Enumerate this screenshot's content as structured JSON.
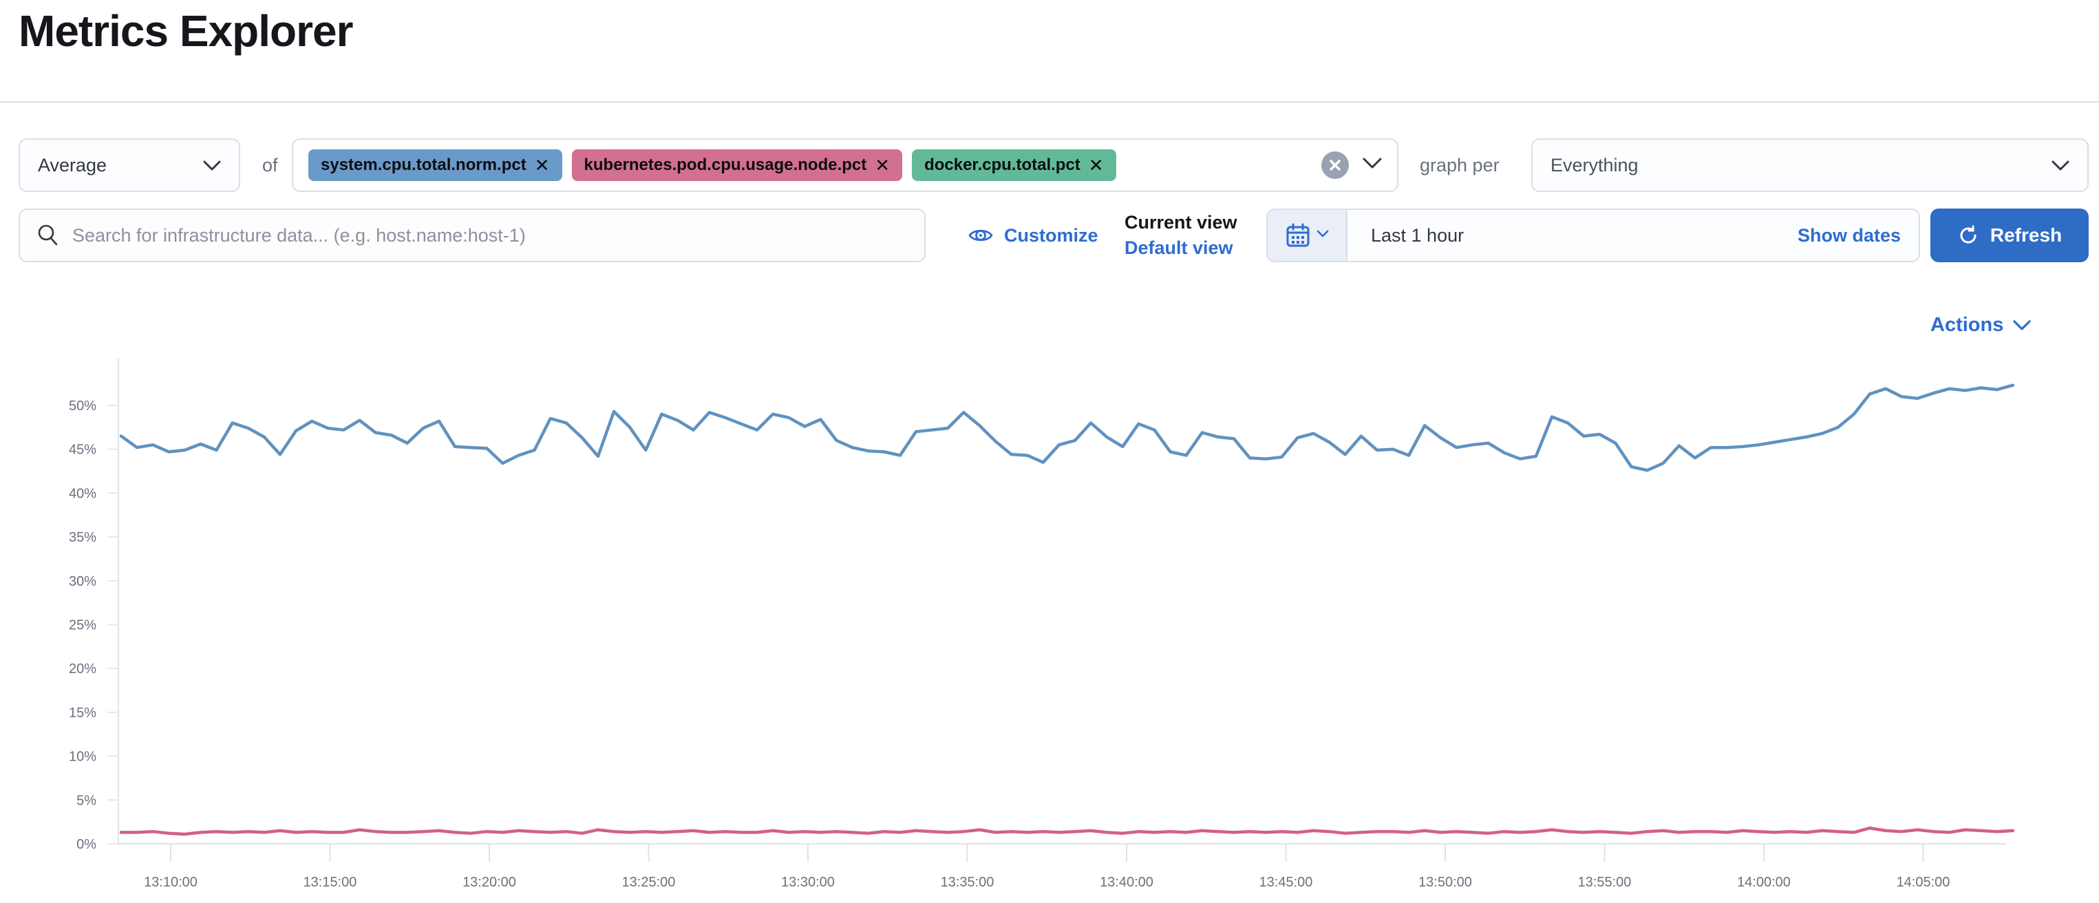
{
  "page": {
    "title": "Metrics Explorer"
  },
  "toolbar": {
    "aggregation": {
      "value": "Average"
    },
    "of_label": "of",
    "metrics": {
      "items": [
        {
          "label": "system.cpu.total.norm.pct",
          "color": "#6A9AC9"
        },
        {
          "label": "kubernetes.pod.cpu.usage.node.pct",
          "color": "#D2708F"
        },
        {
          "label": "docker.cpu.total.pct",
          "color": "#62B998"
        }
      ],
      "remove_icon": "✕",
      "clear_icon": "✕"
    },
    "graph_per_label": "graph per",
    "group_by": {
      "value": "Everything"
    }
  },
  "filter_bar": {
    "search": {
      "placeholder": "Search for infrastructure data... (e.g. host.name:host-1)"
    },
    "customize_label": "Customize",
    "view_switcher": {
      "current_label": "Current view",
      "default_label": "Default view"
    },
    "time_picker": {
      "value": "Last 1 hour",
      "show_dates_label": "Show dates"
    },
    "refresh_label": "Refresh"
  },
  "actions_label": "Actions",
  "colors": {
    "link_blue": "#2e6cd2",
    "button_blue": "#2f6cc6",
    "series_blue": "#6092C0",
    "series_pink": "#D36086",
    "axis_line": "#dfe3ea",
    "tick_text": "#69707d"
  },
  "chart_data": {
    "type": "line",
    "title": "",
    "xlabel": "",
    "ylabel": "",
    "ylim": [
      0,
      53.5
    ],
    "grid": false,
    "legend": "none",
    "y_ticks": [
      "0%",
      "5%",
      "10%",
      "15%",
      "20%",
      "25%",
      "30%",
      "35%",
      "40%",
      "45%",
      "50%"
    ],
    "x_ticks": [
      "13:10:00",
      "13:15:00",
      "13:20:00",
      "13:25:00",
      "13:30:00",
      "13:35:00",
      "13:40:00",
      "13:45:00",
      "13:50:00",
      "13:55:00",
      "14:00:00",
      "14:05:00"
    ],
    "x_start": "13:08:30",
    "x_step_seconds": 30,
    "series": [
      {
        "name": "system.cpu.total.norm.pct",
        "color": "#6092C0",
        "unit": "%",
        "values": [
          46.5,
          45.2,
          45.5,
          44.7,
          44.9,
          45.6,
          44.9,
          48.0,
          47.4,
          46.4,
          44.4,
          47.1,
          48.2,
          47.4,
          47.2,
          48.3,
          46.9,
          46.6,
          45.7,
          47.4,
          48.2,
          45.3,
          45.2,
          45.1,
          43.4,
          44.3,
          44.9,
          48.5,
          48.0,
          46.3,
          44.2,
          49.3,
          47.5,
          44.9,
          49.0,
          48.3,
          47.2,
          49.2,
          48.6,
          47.9,
          47.2,
          49.0,
          48.6,
          47.6,
          48.4,
          46.0,
          45.2,
          44.8,
          44.7,
          44.3,
          47.0,
          47.2,
          47.4,
          49.2,
          47.7,
          45.9,
          44.4,
          44.3,
          43.5,
          45.5,
          46.0,
          48.0,
          46.4,
          45.3,
          47.9,
          47.2,
          44.7,
          44.3,
          46.9,
          46.4,
          46.2,
          44.0,
          43.9,
          44.1,
          46.3,
          46.8,
          45.8,
          44.4,
          46.5,
          44.9,
          45.0,
          44.3,
          47.7,
          46.3,
          45.2,
          45.5,
          45.7,
          44.6,
          43.9,
          44.2,
          48.7,
          48.0,
          46.5,
          46.7,
          45.7,
          43.0,
          42.6,
          43.4,
          45.4,
          44.0,
          45.2,
          45.2,
          45.3,
          45.5,
          45.8,
          46.1,
          46.4,
          46.8,
          47.5,
          49.0,
          51.3,
          51.9,
          51.0,
          50.8,
          51.4,
          51.9,
          51.7,
          52.0,
          51.8,
          52.3
        ]
      },
      {
        "name": "kubernetes.pod.cpu.usage.node.pct",
        "color": "#D36086",
        "unit": "%",
        "values": [
          1.3,
          1.3,
          1.4,
          1.2,
          1.1,
          1.3,
          1.4,
          1.3,
          1.4,
          1.3,
          1.5,
          1.3,
          1.4,
          1.3,
          1.3,
          1.6,
          1.4,
          1.3,
          1.3,
          1.4,
          1.5,
          1.3,
          1.2,
          1.4,
          1.3,
          1.5,
          1.4,
          1.3,
          1.4,
          1.2,
          1.6,
          1.4,
          1.3,
          1.4,
          1.3,
          1.4,
          1.5,
          1.3,
          1.4,
          1.3,
          1.3,
          1.5,
          1.3,
          1.4,
          1.3,
          1.4,
          1.3,
          1.2,
          1.4,
          1.3,
          1.5,
          1.4,
          1.3,
          1.4,
          1.6,
          1.3,
          1.4,
          1.3,
          1.4,
          1.3,
          1.4,
          1.5,
          1.3,
          1.2,
          1.4,
          1.3,
          1.4,
          1.3,
          1.5,
          1.4,
          1.3,
          1.4,
          1.3,
          1.4,
          1.3,
          1.5,
          1.4,
          1.2,
          1.3,
          1.4,
          1.4,
          1.3,
          1.5,
          1.3,
          1.4,
          1.3,
          1.2,
          1.4,
          1.3,
          1.4,
          1.6,
          1.4,
          1.3,
          1.4,
          1.3,
          1.2,
          1.4,
          1.5,
          1.3,
          1.4,
          1.4,
          1.3,
          1.5,
          1.4,
          1.3,
          1.4,
          1.3,
          1.5,
          1.4,
          1.3,
          1.8,
          1.5,
          1.4,
          1.6,
          1.4,
          1.3,
          1.6,
          1.5,
          1.4,
          1.5
        ]
      }
    ]
  }
}
